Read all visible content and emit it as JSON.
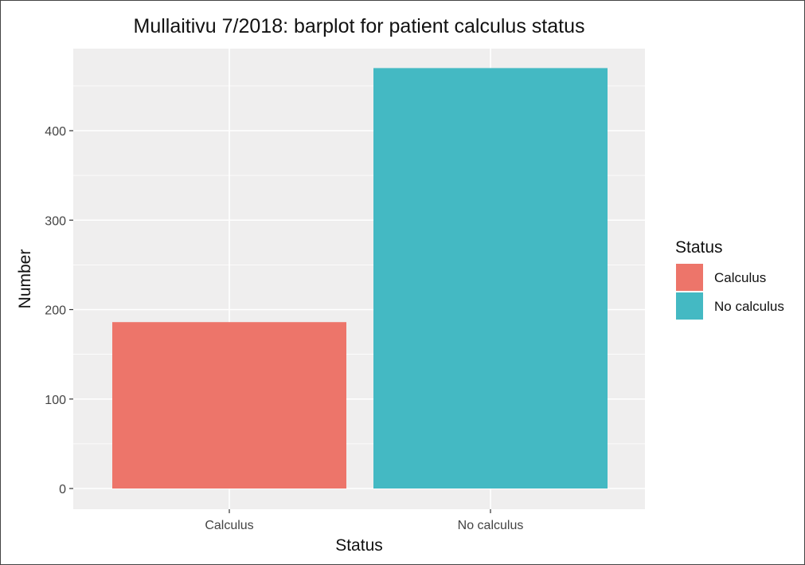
{
  "chart_data": {
    "type": "bar",
    "title": "Mullaitivu 7/2018: barplot for patient calculus status",
    "xlabel": "Status",
    "ylabel": "Number",
    "categories": [
      "Calculus",
      "No calculus"
    ],
    "values": [
      186,
      470
    ],
    "colors": [
      "#ED756A",
      "#44B9C3"
    ],
    "ylim": [
      0,
      490
    ],
    "yticks": [
      0,
      100,
      200,
      300,
      400
    ],
    "grid": true,
    "panel_background": "#EFEEEE",
    "grid_color": "#FFFFFF",
    "legend": {
      "title": "Status",
      "position": "right",
      "entries": [
        "Calculus",
        "No calculus"
      ]
    }
  }
}
